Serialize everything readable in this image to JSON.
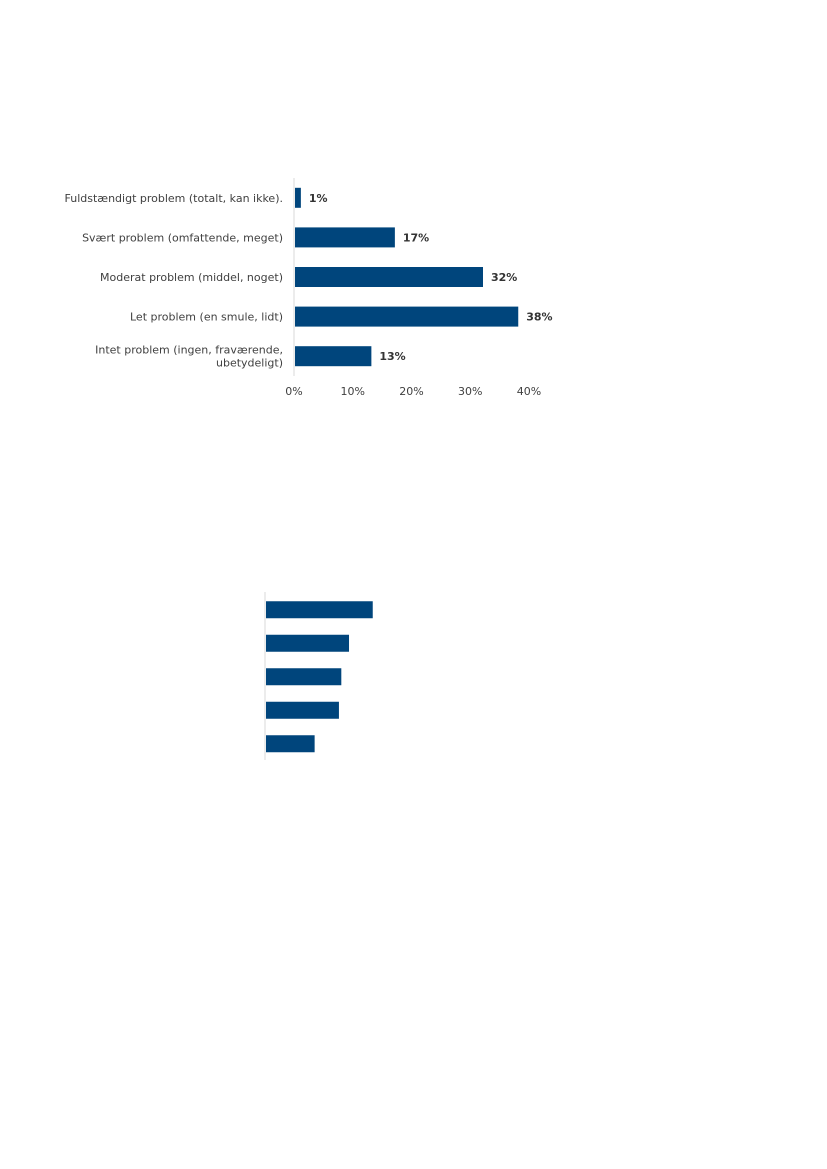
{
  "chart_data": [
    {
      "type": "bar",
      "orientation": "horizontal",
      "categories": [
        [
          "Fuldstændigt problem (totalt, kan ikke)."
        ],
        [
          "Svært problem (omfattende, meget)"
        ],
        [
          "Moderat problem (middel, noget)"
        ],
        [
          "Let problem (en smule, lidt)"
        ],
        [
          "Intet problem (ingen, fraværende,",
          "ubetydeligt)"
        ]
      ],
      "values": [
        1,
        17,
        32,
        38,
        13
      ],
      "data_labels": [
        "1%",
        "17%",
        "32%",
        "38%",
        "13%"
      ],
      "xticks": [
        "0%",
        "10%",
        "20%",
        "30%",
        "40%"
      ],
      "xlim": [
        0,
        40
      ],
      "grid": false,
      "color": "#00457C"
    },
    {
      "type": "bar",
      "orientation": "horizontal",
      "values": [
        18,
        14,
        12.7,
        12.3,
        8.2
      ],
      "xlim": [
        0,
        40
      ],
      "grid": false,
      "color": "#00457C"
    }
  ]
}
